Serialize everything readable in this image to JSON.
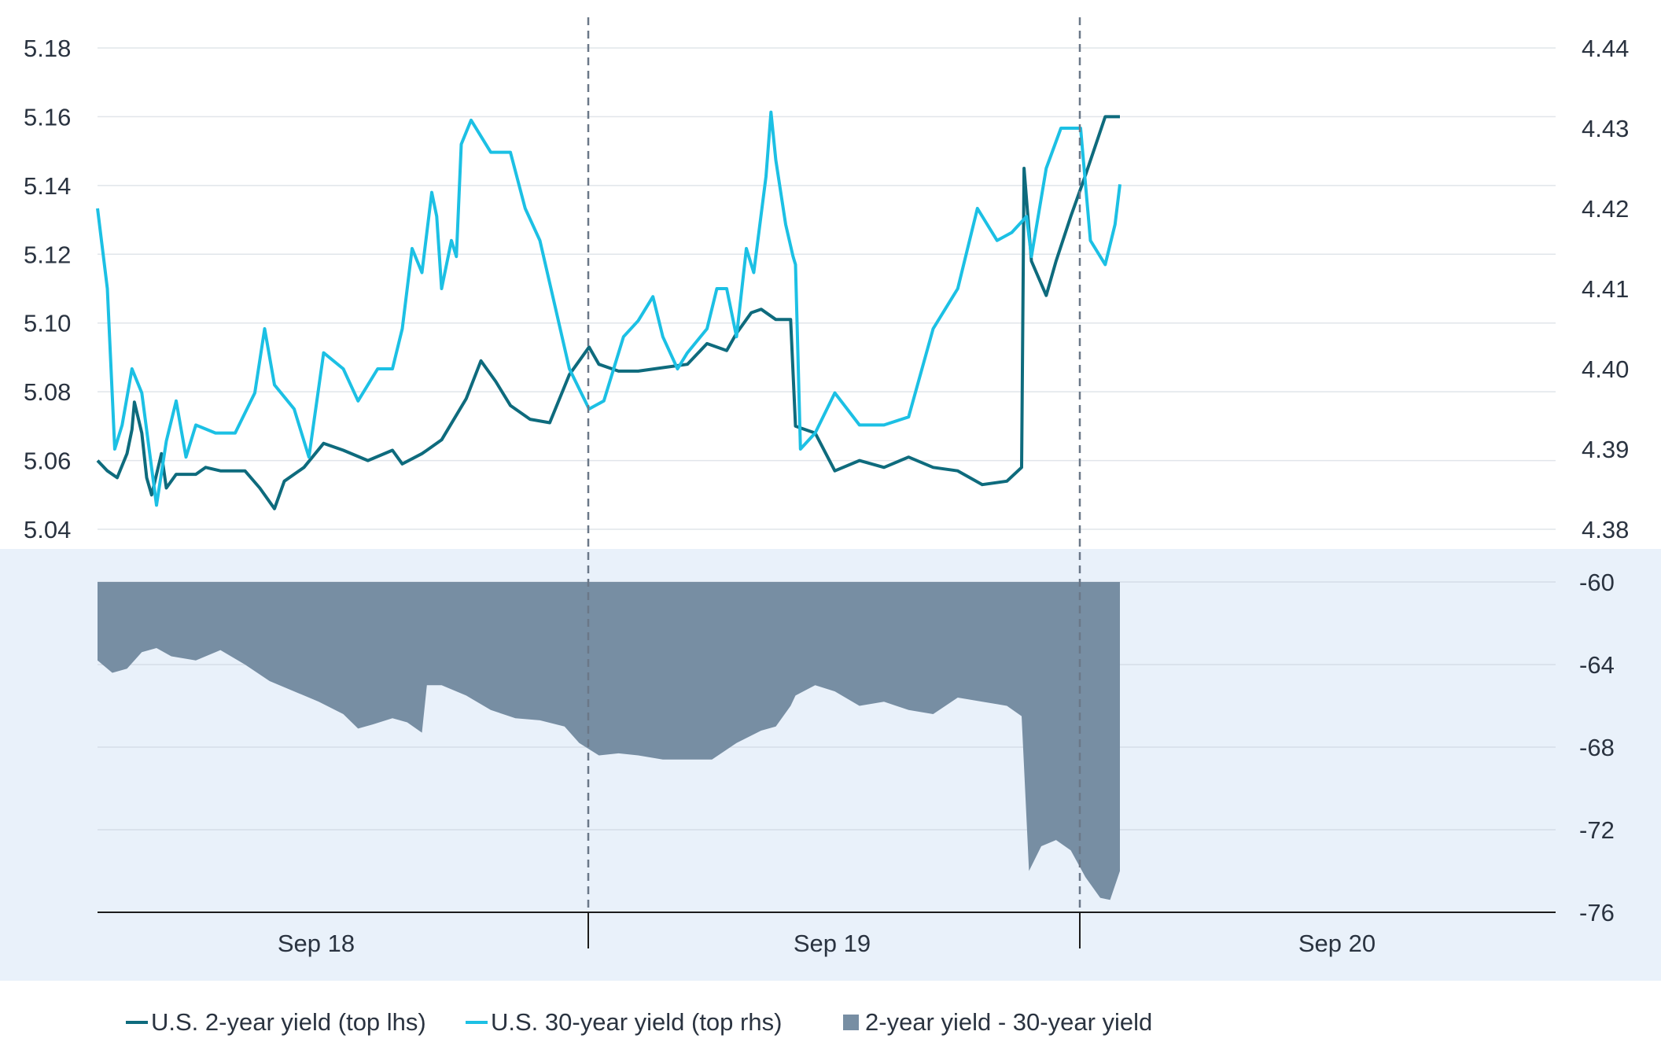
{
  "chart_data": [
    {
      "type": "line",
      "panel": "top",
      "x_categories": [
        "Sep 18",
        "Sep 19",
        "Sep 20"
      ],
      "left_axis": {
        "ylim": [
          5.04,
          5.18
        ],
        "ticks": [
          "5.04",
          "5.06",
          "5.08",
          "5.10",
          "5.12",
          "5.14",
          "5.16",
          "5.18"
        ]
      },
      "right_axis": {
        "ylim": [
          4.38,
          4.44
        ],
        "ticks": [
          "4.38",
          "4.39",
          "4.40",
          "4.41",
          "4.42",
          "4.43",
          "4.44"
        ]
      },
      "grid": true,
      "series": [
        {
          "name": "U.S. 2-year yield (top lhs)",
          "axis": "left",
          "color": "#0e6b7d",
          "points": [
            [
              0.0,
              5.06
            ],
            [
              0.02,
              5.057
            ],
            [
              0.04,
              5.055
            ],
            [
              0.06,
              5.062
            ],
            [
              0.07,
              5.069
            ],
            [
              0.075,
              5.077
            ],
            [
              0.09,
              5.068
            ],
            [
              0.1,
              5.055
            ],
            [
              0.11,
              5.05
            ],
            [
              0.13,
              5.062
            ],
            [
              0.14,
              5.052
            ],
            [
              0.16,
              5.056
            ],
            [
              0.2,
              5.056
            ],
            [
              0.22,
              5.058
            ],
            [
              0.25,
              5.057
            ],
            [
              0.3,
              5.057
            ],
            [
              0.33,
              5.052
            ],
            [
              0.36,
              5.046
            ],
            [
              0.38,
              5.054
            ],
            [
              0.42,
              5.058
            ],
            [
              0.46,
              5.065
            ],
            [
              0.5,
              5.063
            ],
            [
              0.55,
              5.06
            ],
            [
              0.6,
              5.063
            ],
            [
              0.62,
              5.059
            ],
            [
              0.66,
              5.062
            ],
            [
              0.67,
              5.063
            ],
            [
              0.7,
              5.066
            ],
            [
              0.75,
              5.078
            ],
            [
              0.78,
              5.089
            ],
            [
              0.81,
              5.083
            ],
            [
              0.84,
              5.076
            ],
            [
              0.88,
              5.072
            ],
            [
              0.92,
              5.071
            ],
            [
              0.96,
              5.085
            ],
            [
              1.0,
              5.093
            ],
            [
              1.02,
              5.088
            ],
            [
              1.06,
              5.086
            ],
            [
              1.1,
              5.086
            ],
            [
              1.15,
              5.087
            ],
            [
              1.2,
              5.088
            ],
            [
              1.24,
              5.094
            ],
            [
              1.28,
              5.092
            ],
            [
              1.3,
              5.097
            ],
            [
              1.33,
              5.103
            ],
            [
              1.35,
              5.104
            ],
            [
              1.38,
              5.101
            ],
            [
              1.41,
              5.101
            ],
            [
              1.42,
              5.07
            ],
            [
              1.46,
              5.068
            ],
            [
              1.5,
              5.057
            ],
            [
              1.55,
              5.06
            ],
            [
              1.6,
              5.058
            ],
            [
              1.65,
              5.061
            ],
            [
              1.7,
              5.058
            ],
            [
              1.75,
              5.057
            ],
            [
              1.8,
              5.053
            ],
            [
              1.85,
              5.054
            ],
            [
              1.88,
              5.058
            ],
            [
              1.885,
              5.145
            ],
            [
              1.9,
              5.118
            ],
            [
              1.93,
              5.108
            ],
            [
              1.95,
              5.118
            ],
            [
              1.98,
              5.131
            ],
            [
              2.01,
              5.143
            ],
            [
              2.05,
              5.16
            ],
            [
              2.08,
              5.16
            ]
          ]
        },
        {
          "name": "U.S. 30-year yield (top rhs)",
          "axis": "right",
          "color": "#1cc0e4",
          "points": [
            [
              0.0,
              4.42
            ],
            [
              0.02,
              4.41
            ],
            [
              0.035,
              4.39
            ],
            [
              0.05,
              4.393
            ],
            [
              0.07,
              4.4
            ],
            [
              0.09,
              4.397
            ],
            [
              0.12,
              4.383
            ],
            [
              0.14,
              4.391
            ],
            [
              0.16,
              4.396
            ],
            [
              0.18,
              4.389
            ],
            [
              0.2,
              4.393
            ],
            [
              0.24,
              4.392
            ],
            [
              0.28,
              4.392
            ],
            [
              0.32,
              4.397
            ],
            [
              0.34,
              4.405
            ],
            [
              0.36,
              4.398
            ],
            [
              0.4,
              4.395
            ],
            [
              0.43,
              4.389
            ],
            [
              0.46,
              4.402
            ],
            [
              0.5,
              4.4
            ],
            [
              0.53,
              4.396
            ],
            [
              0.57,
              4.4
            ],
            [
              0.6,
              4.4
            ],
            [
              0.62,
              4.405
            ],
            [
              0.64,
              4.415
            ],
            [
              0.66,
              4.412
            ],
            [
              0.68,
              4.422
            ],
            [
              0.69,
              4.419
            ],
            [
              0.7,
              4.41
            ],
            [
              0.72,
              4.416
            ],
            [
              0.73,
              4.414
            ],
            [
              0.74,
              4.428
            ],
            [
              0.76,
              4.431
            ],
            [
              0.8,
              4.427
            ],
            [
              0.84,
              4.427
            ],
            [
              0.87,
              4.42
            ],
            [
              0.9,
              4.416
            ],
            [
              0.93,
              4.408
            ],
            [
              0.96,
              4.4
            ],
            [
              1.0,
              4.395
            ],
            [
              1.03,
              4.396
            ],
            [
              1.05,
              4.4
            ],
            [
              1.07,
              4.404
            ],
            [
              1.1,
              4.406
            ],
            [
              1.13,
              4.409
            ],
            [
              1.15,
              4.404
            ],
            [
              1.18,
              4.4
            ],
            [
              1.2,
              4.402
            ],
            [
              1.24,
              4.405
            ],
            [
              1.26,
              4.41
            ],
            [
              1.28,
              4.41
            ],
            [
              1.3,
              4.404
            ],
            [
              1.32,
              4.415
            ],
            [
              1.335,
              4.412
            ],
            [
              1.36,
              4.424
            ],
            [
              1.37,
              4.432
            ],
            [
              1.38,
              4.426
            ],
            [
              1.4,
              4.418
            ],
            [
              1.415,
              4.414
            ],
            [
              1.42,
              4.413
            ],
            [
              1.43,
              4.39
            ],
            [
              1.46,
              4.392
            ],
            [
              1.5,
              4.397
            ],
            [
              1.55,
              4.393
            ],
            [
              1.6,
              4.393
            ],
            [
              1.65,
              4.394
            ],
            [
              1.7,
              4.405
            ],
            [
              1.75,
              4.41
            ],
            [
              1.79,
              4.42
            ],
            [
              1.83,
              4.416
            ],
            [
              1.86,
              4.417
            ],
            [
              1.89,
              4.419
            ],
            [
              1.9,
              4.414
            ],
            [
              1.93,
              4.425
            ],
            [
              1.96,
              4.43
            ],
            [
              2.0,
              4.43
            ],
            [
              2.02,
              4.416
            ],
            [
              2.05,
              4.413
            ],
            [
              2.07,
              4.418
            ],
            [
              2.08,
              4.423
            ]
          ]
        }
      ]
    },
    {
      "type": "area",
      "panel": "bottom",
      "x_categories": [
        "Sep 18",
        "Sep 19",
        "Sep 20"
      ],
      "ylim": [
        -76,
        -60
      ],
      "ticks": [
        "-60",
        "-64",
        "-68",
        "-72",
        "-76"
      ],
      "grid": true,
      "series": [
        {
          "name": "2-year yield - 30-year yield",
          "color": "#778ea3",
          "points": [
            [
              0.0,
              -63.8
            ],
            [
              0.03,
              -64.4
            ],
            [
              0.06,
              -64.2
            ],
            [
              0.09,
              -63.4
            ],
            [
              0.12,
              -63.2
            ],
            [
              0.15,
              -63.6
            ],
            [
              0.2,
              -63.8
            ],
            [
              0.25,
              -63.3
            ],
            [
              0.3,
              -64.0
            ],
            [
              0.35,
              -64.8
            ],
            [
              0.4,
              -65.3
            ],
            [
              0.45,
              -65.8
            ],
            [
              0.5,
              -66.4
            ],
            [
              0.53,
              -67.1
            ],
            [
              0.56,
              -66.9
            ],
            [
              0.6,
              -66.6
            ],
            [
              0.63,
              -66.8
            ],
            [
              0.66,
              -67.3
            ],
            [
              0.67,
              -65.0
            ],
            [
              0.7,
              -65.0
            ],
            [
              0.75,
              -65.5
            ],
            [
              0.8,
              -66.2
            ],
            [
              0.85,
              -66.6
            ],
            [
              0.9,
              -66.7
            ],
            [
              0.95,
              -67.0
            ],
            [
              0.98,
              -67.8
            ],
            [
              1.02,
              -68.4
            ],
            [
              1.06,
              -68.3
            ],
            [
              1.1,
              -68.4
            ],
            [
              1.15,
              -68.6
            ],
            [
              1.2,
              -68.6
            ],
            [
              1.25,
              -68.6
            ],
            [
              1.3,
              -67.8
            ],
            [
              1.35,
              -67.2
            ],
            [
              1.38,
              -67.0
            ],
            [
              1.41,
              -66.0
            ],
            [
              1.42,
              -65.5
            ],
            [
              1.46,
              -65.0
            ],
            [
              1.5,
              -65.3
            ],
            [
              1.55,
              -66.0
            ],
            [
              1.6,
              -65.8
            ],
            [
              1.65,
              -66.2
            ],
            [
              1.7,
              -66.4
            ],
            [
              1.75,
              -65.6
            ],
            [
              1.8,
              -65.8
            ],
            [
              1.85,
              -66.0
            ],
            [
              1.88,
              -66.5
            ],
            [
              1.895,
              -74.0
            ],
            [
              1.92,
              -72.8
            ],
            [
              1.95,
              -72.5
            ],
            [
              1.98,
              -73.0
            ],
            [
              2.01,
              -74.3
            ],
            [
              2.04,
              -75.3
            ],
            [
              2.06,
              -75.4
            ],
            [
              2.08,
              -74.0
            ]
          ]
        }
      ]
    }
  ],
  "legend": {
    "item1": "U.S. 2-year yield (top lhs)",
    "item2": "U.S. 30-year yield (top rhs)",
    "item3": "2-year yield - 30-year yield",
    "color1": "#0e6b7d",
    "color2": "#1cc0e4",
    "color3": "#778ea3"
  }
}
